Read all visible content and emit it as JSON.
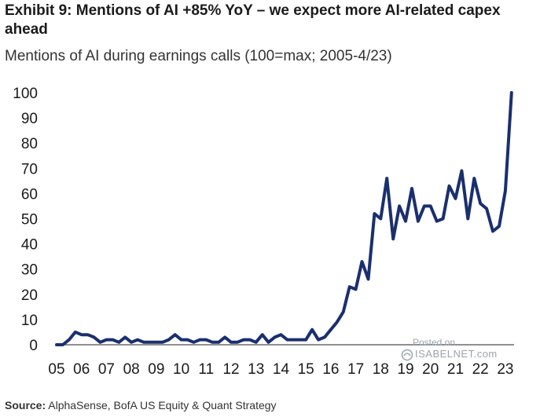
{
  "header": {
    "title": "Exhibit 9: Mentions of AI +85% YoY – we expect more AI-related capex ahead",
    "subtitle": "Mentions of AI during earnings calls (100=max; 2005-4/23)"
  },
  "footer": {
    "source_label": "Source:",
    "source_text": "AlphaSense, BofA US Equity & Quant Strategy"
  },
  "watermark": {
    "posted_on": "Posted on",
    "site": "ISABELNET.com"
  },
  "colors": {
    "line": "#1b2f6e",
    "axis": "#222222"
  },
  "chart_data": {
    "type": "line",
    "title": "Mentions of AI during earnings calls (100=max; 2005-4/23)",
    "xlabel": "",
    "ylabel": "",
    "ylim": [
      0,
      100
    ],
    "yticks": [
      0,
      10,
      20,
      30,
      40,
      50,
      60,
      70,
      80,
      90,
      100
    ],
    "xticks": [
      "05",
      "06",
      "07",
      "08",
      "09",
      "10",
      "11",
      "12",
      "13",
      "14",
      "15",
      "16",
      "17",
      "18",
      "19",
      "20",
      "21",
      "22",
      "23"
    ],
    "xlim": [
      2005,
      2023.35
    ],
    "grid": false,
    "legend": "none",
    "series": [
      {
        "x": [
          2005.0,
          2005.25,
          2005.5,
          2005.75,
          2006.0,
          2006.25,
          2006.5,
          2006.75,
          2007.0,
          2007.25,
          2007.5,
          2007.75,
          2008.0,
          2008.25,
          2008.5,
          2008.75,
          2009.0,
          2009.25,
          2009.5,
          2009.75,
          2010.0,
          2010.25,
          2010.5,
          2010.75,
          2011.0,
          2011.25,
          2011.5,
          2011.75,
          2012.0,
          2012.25,
          2012.5,
          2012.75,
          2013.0,
          2013.25,
          2013.5,
          2013.75,
          2014.0,
          2014.25,
          2014.5,
          2014.75,
          2015.0,
          2015.25,
          2015.5,
          2015.75,
          2016.0,
          2016.25,
          2016.5,
          2016.75,
          2017.0,
          2017.25,
          2017.5,
          2017.75,
          2018.0,
          2018.25,
          2018.5,
          2018.75,
          2019.0,
          2019.25,
          2019.5,
          2019.75,
          2020.0,
          2020.25,
          2020.5,
          2020.75,
          2021.0,
          2021.25,
          2021.5,
          2021.75,
          2022.0,
          2022.25,
          2022.5,
          2022.75,
          2023.0,
          2023.25
        ],
        "values": [
          0,
          0,
          2,
          5,
          4,
          4,
          3,
          1,
          2,
          2,
          1,
          3,
          1,
          2,
          1,
          1,
          1,
          1,
          2,
          4,
          2,
          2,
          1,
          2,
          2,
          1,
          1,
          3,
          1,
          1,
          2,
          2,
          1,
          4,
          1,
          3,
          4,
          2,
          2,
          2,
          2,
          6,
          2,
          3,
          6,
          9,
          13,
          23,
          22,
          33,
          26,
          52,
          50,
          66,
          42,
          55,
          49,
          62,
          49,
          55,
          55,
          49,
          50,
          63,
          58,
          69,
          50,
          66,
          56,
          54,
          45,
          47,
          61,
          100
        ]
      }
    ]
  }
}
